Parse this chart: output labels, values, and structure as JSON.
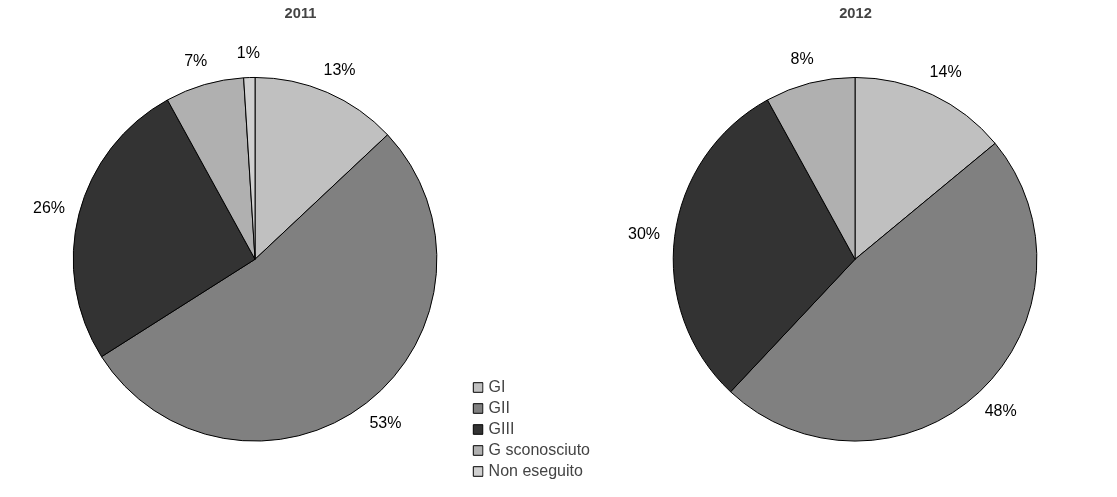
{
  "chart_data": [
    {
      "type": "pie",
      "title": "2011",
      "categories": [
        "GI",
        "GII",
        "GIII",
        "G sconosciuto",
        "Non eseguito"
      ],
      "values": [
        13,
        53,
        26,
        7,
        1
      ],
      "value_labels": [
        "13%",
        "53%",
        "26%",
        "7%",
        "1%"
      ],
      "colors": [
        "#c0c0c0",
        "#808080",
        "#333333",
        "#b0b0b0",
        "#d0d0d0"
      ],
      "legend": "bottom right"
    },
    {
      "type": "pie",
      "title": "2012",
      "categories": [
        null,
        null,
        null,
        null
      ],
      "values": [
        14,
        48,
        30,
        8
      ],
      "value_labels": [
        "14%",
        "48%",
        "30%",
        "8%"
      ],
      "colors": [
        "#c0c0c0",
        "#808080",
        "#333333",
        "#b0b0b0"
      ]
    }
  ]
}
